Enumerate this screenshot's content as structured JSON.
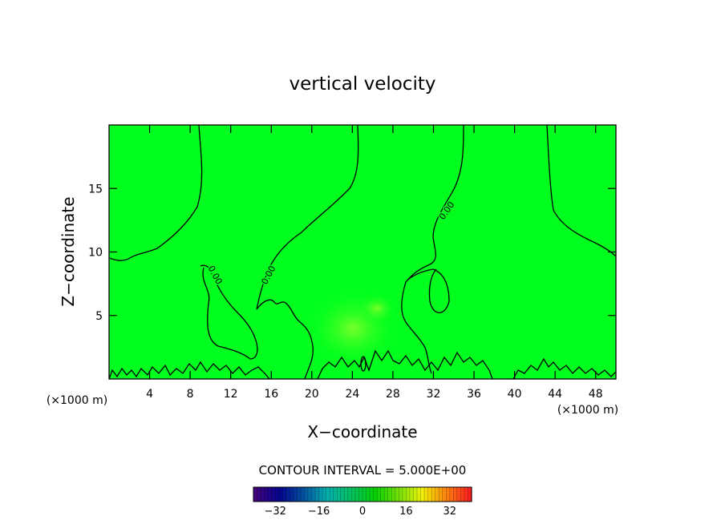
{
  "chart_data": {
    "type": "heatmap",
    "title": "vertical velocity",
    "xlabel": "X−coordinate",
    "ylabel": "Z−coordinate",
    "x_unit": "(×1000 m)",
    "y_unit": "(×1000 m)",
    "xlim": [
      0,
      50
    ],
    "ylim": [
      0,
      20
    ],
    "x_ticks": [
      "4",
      "8",
      "12",
      "16",
      "20",
      "24",
      "28",
      "32",
      "36",
      "40",
      "44",
      "48"
    ],
    "y_ticks": [
      "5",
      "10",
      "15"
    ],
    "field_value_dominant": 0,
    "contour_levels": [
      0
    ],
    "contour_labels": [
      "0.00",
      "0.00",
      "0.00"
    ],
    "contour_interval_text": "CONTOUR INTERVAL = 5.000E+00",
    "colorbar": {
      "range": [
        -40,
        40
      ],
      "ticks": [
        "−32",
        "−16",
        "0",
        "16",
        "32"
      ],
      "colormap": "rainbow"
    },
    "background_color": "#00ff1e"
  }
}
